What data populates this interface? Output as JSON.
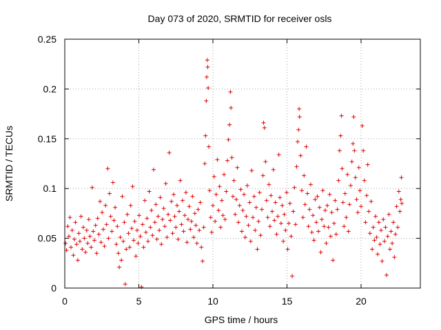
{
  "chart_data": {
    "type": "scatter",
    "title": "Day 073 of 2020, SRMTID for receiver osls",
    "xlabel": "GPS time / hours",
    "ylabel": "SRMTID / TECUs",
    "xlim": [
      0,
      24
    ],
    "ylim": [
      0,
      0.25
    ],
    "grid": true,
    "marker": "+",
    "series_color": "#e00000",
    "x_ticks": [
      {
        "value": 0,
        "label": "0"
      },
      {
        "value": 5,
        "label": "5"
      },
      {
        "value": 10,
        "label": "10"
      },
      {
        "value": 15,
        "label": "15"
      },
      {
        "value": 20,
        "label": "20"
      }
    ],
    "y_ticks": [
      {
        "value": 0,
        "label": "0"
      },
      {
        "value": 0.05,
        "label": "0.05"
      },
      {
        "value": 0.1,
        "label": "0.1"
      },
      {
        "value": 0.15,
        "label": "0.15"
      },
      {
        "value": 0.2,
        "label": "0.2"
      },
      {
        "value": 0.25,
        "label": "0.25"
      }
    ],
    "points": [
      [
        0.05,
        0.045
      ],
      [
        0.12,
        0.038
      ],
      [
        0.2,
        0.062
      ],
      [
        0.28,
        0.052
      ],
      [
        0.35,
        0.071
      ],
      [
        0.42,
        0.041
      ],
      [
        0.5,
        0.058
      ],
      [
        0.58,
        0.033
      ],
      [
        0.65,
        0.049
      ],
      [
        0.72,
        0.066
      ],
      [
        0.8,
        0.044
      ],
      [
        0.88,
        0.028
      ],
      [
        0.95,
        0.055
      ],
      [
        1.02,
        0.047
      ],
      [
        1.1,
        0.072
      ],
      [
        1.18,
        0.039
      ],
      [
        1.25,
        0.061
      ],
      [
        1.32,
        0.05
      ],
      [
        1.4,
        0.036
      ],
      [
        1.48,
        0.058
      ],
      [
        1.55,
        0.045
      ],
      [
        1.62,
        0.069
      ],
      [
        1.7,
        0.052
      ],
      [
        1.78,
        0.041
      ],
      [
        1.85,
        0.101
      ],
      [
        1.92,
        0.057
      ],
      [
        2.0,
        0.048
      ],
      [
        2.08,
        0.063
      ],
      [
        2.15,
        0.035
      ],
      [
        2.22,
        0.07
      ],
      [
        2.3,
        0.054
      ],
      [
        2.38,
        0.087
      ],
      [
        2.45,
        0.046
      ],
      [
        2.52,
        0.076
      ],
      [
        2.6,
        0.059
      ],
      [
        2.68,
        0.042
      ],
      [
        2.75,
        0.083
      ],
      [
        2.82,
        0.064
      ],
      [
        2.9,
        0.12
      ],
      [
        2.95,
        0.05
      ],
      [
        3.02,
        0.095
      ],
      [
        3.1,
        0.072
      ],
      [
        3.18,
        0.057
      ],
      [
        3.25,
        0.106
      ],
      [
        3.32,
        0.068
      ],
      [
        3.4,
        0.081
      ],
      [
        3.48,
        0.044
      ],
      [
        3.55,
        0.062
      ],
      [
        3.62,
        0.035
      ],
      [
        3.68,
        0.021
      ],
      [
        3.75,
        0.051
      ],
      [
        3.82,
        0.028
      ],
      [
        3.88,
        0.092
      ],
      [
        3.95,
        0.047
      ],
      [
        4.02,
        0.066
      ],
      [
        4.08,
        0.004
      ],
      [
        4.15,
        0.039
      ],
      [
        4.22,
        0.074
      ],
      [
        4.3,
        0.055
      ],
      [
        4.38,
        0.041
      ],
      [
        4.45,
        0.083
      ],
      [
        4.52,
        0.06
      ],
      [
        4.58,
        0.102
      ],
      [
        4.65,
        0.048
      ],
      [
        4.72,
        0.067
      ],
      [
        4.8,
        0.032
      ],
      [
        4.88,
        0.058
      ],
      [
        4.95,
        0.045
      ],
      [
        5.02,
        0.073
      ],
      [
        5.1,
        0.052
      ],
      [
        5.18,
        0.001
      ],
      [
        5.25,
        0.064
      ],
      [
        5.32,
        0.041
      ],
      [
        5.4,
        0.088
      ],
      [
        5.48,
        0.056
      ],
      [
        5.55,
        0.07
      ],
      [
        5.62,
        0.047
      ],
      [
        5.7,
        0.097
      ],
      [
        5.78,
        0.061
      ],
      [
        5.85,
        0.078
      ],
      [
        5.92,
        0.053
      ],
      [
        6.0,
        0.119
      ],
      [
        6.08,
        0.066
      ],
      [
        6.15,
        0.084
      ],
      [
        6.22,
        0.049
      ],
      [
        6.3,
        0.072
      ],
      [
        6.38,
        0.058
      ],
      [
        6.45,
        0.091
      ],
      [
        6.52,
        0.044
      ],
      [
        6.6,
        0.069
      ],
      [
        6.68,
        0.08
      ],
      [
        6.75,
        0.062
      ],
      [
        6.82,
        0.105
      ],
      [
        6.9,
        0.051
      ],
      [
        6.98,
        0.074
      ],
      [
        7.05,
        0.136
      ],
      [
        7.12,
        0.068
      ],
      [
        7.2,
        0.087
      ],
      [
        7.28,
        0.055
      ],
      [
        7.35,
        0.094
      ],
      [
        7.42,
        0.072
      ],
      [
        7.5,
        0.061
      ],
      [
        7.58,
        0.083
      ],
      [
        7.65,
        0.049
      ],
      [
        7.72,
        0.077
      ],
      [
        7.8,
        0.108
      ],
      [
        7.88,
        0.064
      ],
      [
        7.95,
        0.088
      ],
      [
        8.02,
        0.057
      ],
      [
        8.1,
        0.073
      ],
      [
        8.18,
        0.096
      ],
      [
        8.25,
        0.046
      ],
      [
        8.32,
        0.069
      ],
      [
        8.4,
        0.082
      ],
      [
        8.48,
        0.059
      ],
      [
        8.55,
        0.067
      ],
      [
        8.62,
        0.092
      ],
      [
        8.7,
        0.051
      ],
      [
        8.78,
        0.075
      ],
      [
        8.85,
        0.063
      ],
      [
        8.92,
        0.045
      ],
      [
        9.0,
        0.079
      ],
      [
        9.08,
        0.058
      ],
      [
        9.15,
        0.086
      ],
      [
        9.22,
        0.041
      ],
      [
        9.3,
        0.027
      ],
      [
        9.38,
        0.061
      ],
      [
        9.45,
        0.125
      ],
      [
        9.5,
        0.153
      ],
      [
        9.55,
        0.188
      ],
      [
        9.58,
        0.212
      ],
      [
        9.62,
        0.229
      ],
      [
        9.65,
        0.222
      ],
      [
        9.68,
        0.201
      ],
      [
        9.72,
        0.142
      ],
      [
        9.78,
        0.098
      ],
      [
        9.85,
        0.071
      ],
      [
        9.92,
        0.056
      ],
      [
        10.0,
        0.083
      ],
      [
        10.08,
        0.112
      ],
      [
        10.15,
        0.067
      ],
      [
        10.22,
        0.094
      ],
      [
        10.3,
        0.129
      ],
      [
        10.38,
        0.078
      ],
      [
        10.45,
        0.102
      ],
      [
        10.52,
        0.061
      ],
      [
        10.6,
        0.088
      ],
      [
        10.68,
        0.073
      ],
      [
        10.75,
        0.114
      ],
      [
        10.82,
        0.069
      ],
      [
        10.9,
        0.097
      ],
      [
        10.98,
        0.128
      ],
      [
        11.05,
        0.149
      ],
      [
        11.12,
        0.164
      ],
      [
        11.18,
        0.197
      ],
      [
        11.22,
        0.181
      ],
      [
        11.28,
        0.131
      ],
      [
        11.35,
        0.092
      ],
      [
        11.42,
        0.108
      ],
      [
        11.5,
        0.074
      ],
      [
        11.58,
        0.089
      ],
      [
        11.65,
        0.121
      ],
      [
        11.72,
        0.066
      ],
      [
        11.8,
        0.083
      ],
      [
        11.88,
        0.099
      ],
      [
        11.95,
        0.057
      ],
      [
        12.02,
        0.078
      ],
      [
        12.1,
        0.094
      ],
      [
        12.18,
        0.051
      ],
      [
        12.25,
        0.072
      ],
      [
        12.32,
        0.103
      ],
      [
        12.4,
        0.063
      ],
      [
        12.48,
        0.086
      ],
      [
        12.55,
        0.047
      ],
      [
        12.62,
        0.118
      ],
      [
        12.7,
        0.071
      ],
      [
        12.78,
        0.092
      ],
      [
        12.85,
        0.058
      ],
      [
        12.92,
        0.081
      ],
      [
        13.0,
        0.039
      ],
      [
        13.08,
        0.067
      ],
      [
        13.15,
        0.096
      ],
      [
        13.22,
        0.053
      ],
      [
        13.3,
        0.079
      ],
      [
        13.38,
        0.113
      ],
      [
        13.42,
        0.166
      ],
      [
        13.48,
        0.161
      ],
      [
        13.55,
        0.127
      ],
      [
        13.62,
        0.088
      ],
      [
        13.7,
        0.071
      ],
      [
        13.78,
        0.104
      ],
      [
        13.85,
        0.062
      ],
      [
        13.92,
        0.093
      ],
      [
        14.0,
        0.077
      ],
      [
        14.08,
        0.119
      ],
      [
        14.15,
        0.068
      ],
      [
        14.22,
        0.086
      ],
      [
        14.3,
        0.054
      ],
      [
        14.38,
        0.072
      ],
      [
        14.45,
        0.134
      ],
      [
        14.52,
        0.091
      ],
      [
        14.6,
        0.065
      ],
      [
        14.68,
        0.083
      ],
      [
        14.75,
        0.047
      ],
      [
        14.82,
        0.074
      ],
      [
        14.9,
        0.058
      ],
      [
        14.98,
        0.096
      ],
      [
        15.05,
        0.039
      ],
      [
        15.12,
        0.065
      ],
      [
        15.2,
        0.085
      ],
      [
        15.28,
        0.052
      ],
      [
        15.35,
        0.012
      ],
      [
        15.42,
        0.077
      ],
      [
        15.5,
        0.101
      ],
      [
        15.58,
        0.064
      ],
      [
        15.65,
        0.122
      ],
      [
        15.72,
        0.147
      ],
      [
        15.78,
        0.159
      ],
      [
        15.82,
        0.18
      ],
      [
        15.85,
        0.172
      ],
      [
        15.92,
        0.133
      ],
      [
        16.0,
        0.098
      ],
      [
        16.08,
        0.071
      ],
      [
        16.15,
        0.113
      ],
      [
        16.22,
        0.084
      ],
      [
        16.3,
        0.142
      ],
      [
        16.38,
        0.095
      ],
      [
        16.45,
        0.062
      ],
      [
        16.52,
        0.079
      ],
      [
        16.6,
        0.104
      ],
      [
        16.68,
        0.056
      ],
      [
        16.75,
        0.073
      ],
      [
        16.82,
        0.048
      ],
      [
        16.9,
        0.089
      ],
      [
        16.98,
        0.066
      ],
      [
        17.05,
        0.092
      ],
      [
        17.12,
        0.057
      ],
      [
        17.2,
        0.081
      ],
      [
        17.28,
        0.036
      ],
      [
        17.35,
        0.069
      ],
      [
        17.42,
        0.098
      ],
      [
        17.5,
        0.062
      ],
      [
        17.58,
        0.078
      ],
      [
        17.65,
        0.045
      ],
      [
        17.72,
        0.083
      ],
      [
        17.8,
        0.061
      ],
      [
        17.88,
        0.094
      ],
      [
        17.95,
        0.052
      ],
      [
        18.02,
        0.076
      ],
      [
        18.1,
        0.028
      ],
      [
        18.18,
        0.065
      ],
      [
        18.25,
        0.088
      ],
      [
        18.32,
        0.054
      ],
      [
        18.4,
        0.079
      ],
      [
        18.48,
        0.108
      ],
      [
        18.55,
        0.138
      ],
      [
        18.62,
        0.153
      ],
      [
        18.68,
        0.173
      ],
      [
        18.72,
        0.12
      ],
      [
        18.78,
        0.086
      ],
      [
        18.85,
        0.062
      ],
      [
        18.92,
        0.095
      ],
      [
        19.0,
        0.071
      ],
      [
        19.08,
        0.114
      ],
      [
        19.15,
        0.057
      ],
      [
        19.22,
        0.084
      ],
      [
        19.3,
        0.103
      ],
      [
        19.38,
        0.127
      ],
      [
        19.45,
        0.145
      ],
      [
        19.5,
        0.172
      ],
      [
        19.55,
        0.138
      ],
      [
        19.62,
        0.111
      ],
      [
        19.7,
        0.089
      ],
      [
        19.78,
        0.076
      ],
      [
        19.85,
        0.121
      ],
      [
        19.92,
        0.098
      ],
      [
        20.0,
        0.082
      ],
      [
        20.08,
        0.163
      ],
      [
        20.15,
        0.138
      ],
      [
        20.22,
        0.108
      ],
      [
        20.3,
        0.066
      ],
      [
        20.38,
        0.093
      ],
      [
        20.45,
        0.124
      ],
      [
        20.52,
        0.077
      ],
      [
        20.6,
        0.055
      ],
      [
        20.68,
        0.087
      ],
      [
        20.75,
        0.039
      ],
      [
        20.82,
        0.061
      ],
      [
        20.9,
        0.048
      ],
      [
        20.98,
        0.072
      ],
      [
        21.05,
        0.051
      ],
      [
        21.12,
        0.034
      ],
      [
        21.2,
        0.066
      ],
      [
        21.28,
        0.044
      ],
      [
        21.35,
        0.058
      ],
      [
        21.42,
        0.027
      ],
      [
        21.5,
        0.069
      ],
      [
        21.58,
        0.047
      ],
      [
        21.65,
        0.061
      ],
      [
        21.72,
        0.013
      ],
      [
        21.8,
        0.052
      ],
      [
        21.88,
        0.074
      ],
      [
        21.95,
        0.039
      ],
      [
        22.02,
        0.057
      ],
      [
        22.1,
        0.045
      ],
      [
        22.18,
        0.066
      ],
      [
        22.25,
        0.031
      ],
      [
        22.32,
        0.054
      ],
      [
        22.4,
        0.082
      ],
      [
        22.48,
        0.061
      ],
      [
        22.55,
        0.097
      ],
      [
        22.62,
        0.077
      ],
      [
        22.68,
        0.089
      ],
      [
        22.72,
        0.111
      ],
      [
        22.75,
        0.085
      ]
    ]
  }
}
